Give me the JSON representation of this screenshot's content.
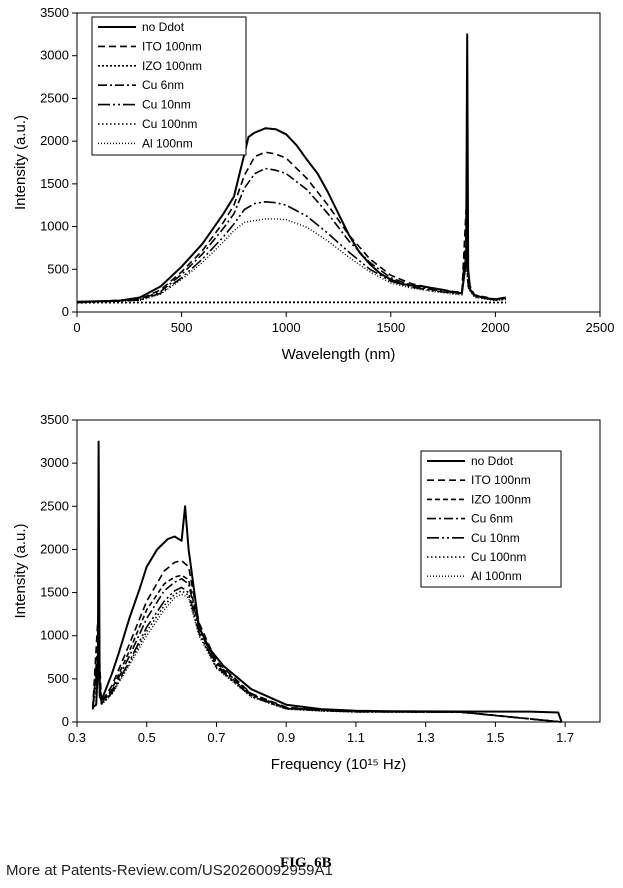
{
  "chart_data": [
    {
      "type": "line",
      "title": "",
      "xlabel": "Wavelength (nm)",
      "ylabel": "Intensity (a.u.)",
      "xlim": [
        0,
        2500
      ],
      "ylim": [
        0,
        3500
      ],
      "xticks": [
        0,
        500,
        1000,
        1500,
        2000,
        2500
      ],
      "yticks": [
        0,
        500,
        1000,
        1500,
        2000,
        2500,
        3000,
        3500
      ],
      "legend_position": "top-left",
      "series": [
        {
          "name": "no Ddot",
          "dash": "",
          "width": 2.0,
          "x": [
            0,
            100,
            200,
            300,
            400,
            500,
            600,
            700,
            750,
            780,
            800,
            820,
            850,
            870,
            900,
            950,
            1000,
            1050,
            1100,
            1150,
            1200,
            1250,
            1300,
            1350,
            1400,
            1450,
            1500,
            1550,
            1600,
            1650,
            1700,
            1750,
            1800,
            1840,
            1860,
            1865,
            1870,
            1880,
            1900,
            1950,
            2000,
            2050
          ],
          "y": [
            120,
            125,
            130,
            170,
            300,
            530,
            800,
            1150,
            1350,
            1650,
            1850,
            2050,
            2100,
            2120,
            2150,
            2140,
            2080,
            1950,
            1780,
            1620,
            1400,
            1150,
            900,
            700,
            560,
            450,
            380,
            330,
            310,
            300,
            280,
            260,
            230,
            220,
            600,
            3250,
            500,
            250,
            200,
            160,
            150,
            170
          ]
        },
        {
          "name": "ITO 100nm",
          "dash": "7,4",
          "width": 1.6,
          "x": [
            0,
            300,
            400,
            500,
            600,
            700,
            750,
            800,
            850,
            900,
            950,
            1000,
            1100,
            1200,
            1300,
            1400,
            1500,
            1600,
            1700,
            1800,
            1840,
            1860,
            1870,
            1900,
            2000,
            2050
          ],
          "y": [
            115,
            150,
            260,
            470,
            720,
            1050,
            1250,
            1600,
            1820,
            1870,
            1850,
            1800,
            1560,
            1250,
            900,
            620,
            430,
            330,
            280,
            240,
            230,
            1200,
            350,
            200,
            150,
            160
          ]
        },
        {
          "name": "IZO 100nm",
          "dash": "2,2",
          "width": 1.6,
          "x": [
            0,
            500,
            1000,
            1500,
            2000,
            2050
          ],
          "y": [
            110,
            112,
            115,
            113,
            112,
            112
          ]
        },
        {
          "name": "Cu 6nm",
          "dash": "9,3,2,3",
          "width": 1.6,
          "x": [
            0,
            300,
            400,
            500,
            600,
            700,
            750,
            800,
            850,
            900,
            950,
            1000,
            1100,
            1200,
            1300,
            1400,
            1500,
            1600,
            1700,
            1800,
            1840,
            1860,
            1870,
            1900,
            2000,
            2050
          ],
          "y": [
            112,
            145,
            240,
            440,
            680,
            980,
            1150,
            1450,
            1620,
            1680,
            1660,
            1620,
            1430,
            1150,
            830,
            580,
            400,
            310,
            260,
            230,
            220,
            900,
            320,
            190,
            145,
            155
          ]
        },
        {
          "name": "Cu 10nm",
          "dash": "12,3,2,3,2,3",
          "width": 1.6,
          "x": [
            0,
            300,
            400,
            500,
            600,
            700,
            750,
            800,
            850,
            900,
            950,
            1000,
            1100,
            1200,
            1300,
            1400,
            1500,
            1600,
            1700,
            1800,
            1840,
            1860,
            1870,
            1900,
            2000,
            2050
          ],
          "y": [
            110,
            140,
            220,
            400,
            620,
            880,
            1030,
            1200,
            1270,
            1290,
            1280,
            1250,
            1120,
            920,
            700,
            500,
            360,
            290,
            250,
            220,
            210,
            700,
            300,
            180,
            140,
            150
          ]
        },
        {
          "name": "Cu 100nm",
          "dash": "1.5,2.5",
          "width": 1.6,
          "x": [
            0,
            500,
            1000,
            1500,
            2000,
            2050
          ],
          "y": [
            108,
            110,
            112,
            111,
            110,
            110
          ]
        },
        {
          "name": "Al 100nm",
          "dash": "1,2",
          "width": 1.4,
          "x": [
            0,
            300,
            400,
            500,
            600,
            700,
            750,
            800,
            850,
            900,
            950,
            1000,
            1100,
            1200,
            1300,
            1400,
            1500,
            1600,
            1700,
            1800,
            1840,
            1860,
            1870,
            1900,
            2000,
            2050
          ],
          "y": [
            110,
            135,
            210,
            380,
            580,
            820,
            950,
            1050,
            1070,
            1090,
            1090,
            1080,
            990,
            830,
            640,
            470,
            340,
            280,
            240,
            210,
            200,
            550,
            280,
            170,
            135,
            145
          ]
        }
      ]
    },
    {
      "type": "line",
      "title": "",
      "xlabel": "Frequency (10¹⁵ Hz)",
      "ylabel": "Intensity (a.u.)",
      "xlim": [
        0.3,
        1.8
      ],
      "ylim": [
        0,
        3500
      ],
      "xticks": [
        0.3,
        0.5,
        0.7,
        0.9,
        1.1,
        1.3,
        1.5,
        1.7
      ],
      "xtick_labels": [
        "0.3",
        "0.5",
        "0.7",
        "0.9",
        "1.1",
        "1.3",
        "1.5",
        "1.7"
      ],
      "yticks": [
        0,
        500,
        1000,
        1500,
        2000,
        2500,
        3000,
        3500
      ],
      "legend_position": "top-right",
      "series": [
        {
          "name": "no Ddot",
          "dash": "",
          "width": 2.0,
          "x": [
            0.345,
            0.355,
            0.36,
            0.362,
            0.365,
            0.37,
            0.38,
            0.4,
            0.42,
            0.45,
            0.48,
            0.5,
            0.53,
            0.56,
            0.58,
            0.6,
            0.61,
            0.62,
            0.63,
            0.65,
            0.68,
            0.72,
            0.8,
            0.9,
            1.0,
            1.1,
            1.2,
            1.4,
            1.6,
            1.68,
            1.69
          ],
          "y": [
            170,
            200,
            600,
            3250,
            300,
            250,
            350,
            560,
            800,
            1200,
            1550,
            1800,
            2000,
            2120,
            2150,
            2100,
            2500,
            2000,
            1700,
            1100,
            850,
            650,
            380,
            200,
            150,
            130,
            125,
            122,
            120,
            110,
            0
          ]
        },
        {
          "name": "ITO 100nm",
          "dash": "7,4",
          "width": 1.6,
          "x": [
            0.345,
            0.36,
            0.37,
            0.4,
            0.45,
            0.5,
            0.55,
            0.58,
            0.6,
            0.62,
            0.65,
            0.7,
            0.8,
            0.9,
            1.0,
            1.1,
            1.4,
            1.69
          ],
          "y": [
            160,
            1200,
            230,
            420,
            900,
            1400,
            1750,
            1850,
            1870,
            1800,
            1150,
            700,
            330,
            170,
            140,
            125,
            118,
            0
          ]
        },
        {
          "name": "IZO 100nm",
          "dash": "5,3",
          "width": 1.6,
          "x": [
            0.345,
            0.36,
            0.37,
            0.4,
            0.45,
            0.5,
            0.55,
            0.58,
            0.6,
            0.62,
            0.65,
            0.7,
            0.8,
            0.9,
            1.0,
            1.1,
            1.4,
            1.69
          ],
          "y": [
            155,
            900,
            220,
            380,
            820,
            1300,
            1600,
            1680,
            1700,
            1650,
            1100,
            680,
            320,
            165,
            138,
            122,
            116,
            0
          ]
        },
        {
          "name": "Cu 6nm",
          "dash": "9,3,2,3",
          "width": 1.6,
          "x": [
            0.345,
            0.36,
            0.37,
            0.4,
            0.45,
            0.5,
            0.55,
            0.58,
            0.6,
            0.62,
            0.65,
            0.7,
            0.8,
            0.9,
            1.0,
            1.1,
            1.4,
            1.69
          ],
          "y": [
            150,
            800,
            215,
            360,
            760,
            1200,
            1520,
            1620,
            1660,
            1600,
            1080,
            660,
            310,
            160,
            135,
            120,
            115,
            0
          ]
        },
        {
          "name": "Cu 10nm",
          "dash": "12,3,2,3,2,3",
          "width": 1.6,
          "x": [
            0.345,
            0.36,
            0.37,
            0.4,
            0.45,
            0.5,
            0.55,
            0.58,
            0.6,
            0.62,
            0.65,
            0.7,
            0.8,
            0.9,
            1.0,
            1.1,
            1.4,
            1.69
          ],
          "y": [
            148,
            700,
            210,
            340,
            700,
            1100,
            1400,
            1520,
            1560,
            1500,
            1040,
            640,
            300,
            155,
            132,
            118,
            114,
            0
          ]
        },
        {
          "name": "Cu 100nm",
          "dash": "1.5,2.5",
          "width": 1.6,
          "x": [
            0.345,
            0.36,
            0.37,
            0.4,
            0.45,
            0.5,
            0.55,
            0.58,
            0.6,
            0.62,
            0.65,
            0.7,
            0.8,
            0.9,
            1.0,
            1.1,
            1.4,
            1.69
          ],
          "y": [
            146,
            600,
            205,
            330,
            680,
            1050,
            1350,
            1480,
            1520,
            1470,
            1020,
            630,
            295,
            152,
            130,
            117,
            113,
            0
          ]
        },
        {
          "name": "Al 100nm",
          "dash": "1,2",
          "width": 1.4,
          "x": [
            0.345,
            0.36,
            0.37,
            0.4,
            0.45,
            0.5,
            0.55,
            0.58,
            0.6,
            0.62,
            0.65,
            0.7,
            0.8,
            0.9,
            1.0,
            1.1,
            1.4,
            1.69
          ],
          "y": [
            145,
            550,
            200,
            320,
            660,
            1000,
            1300,
            1440,
            1480,
            1440,
            1000,
            620,
            290,
            150,
            128,
            116,
            112,
            0
          ]
        }
      ]
    }
  ],
  "figure_label": "FIG. 6B",
  "footer_text": "More at Patents-Review.com/US20260092959A1"
}
